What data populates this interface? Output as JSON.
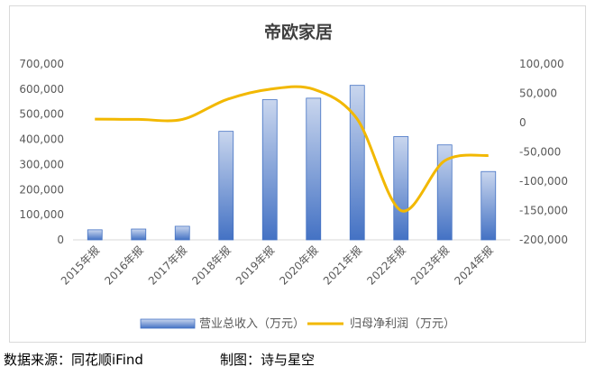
{
  "chart_data": {
    "type": "bar",
    "title": "帝欧家居",
    "categories": [
      "2015年报",
      "2016年报",
      "2017年报",
      "2018年报",
      "2019年报",
      "2020年报",
      "2021年报",
      "2022年报",
      "2023年报",
      "2024年报"
    ],
    "series": [
      {
        "name": "营业总收入（万元）",
        "type": "bar",
        "axis": "left",
        "values": [
          40000,
          43000,
          54000,
          432000,
          558000,
          564000,
          615000,
          411000,
          378000,
          272000
        ]
      },
      {
        "name": "归母净利润（万元）",
        "type": "line",
        "axis": "right",
        "values": [
          6000,
          5500,
          5500,
          39000,
          57000,
          57000,
          6000,
          -150000,
          -65000,
          -56000
        ]
      }
    ],
    "y_left": {
      "min": 0,
      "max": 700000,
      "step": 100000,
      "tick_labels": [
        "0",
        "100,000",
        "200,000",
        "300,000",
        "400,000",
        "500,000",
        "600,000",
        "700,000"
      ]
    },
    "y_right": {
      "min": -200000,
      "max": 100000,
      "step": 50000,
      "tick_labels": [
        "-200,000",
        "-150,000",
        "-100,000",
        "-50,000",
        "0",
        "50,000",
        "100,000"
      ]
    },
    "grid": false,
    "legend_position": "bottom",
    "colors": {
      "bar": "#4472c4",
      "bar_light": "#c9d6ee",
      "line": "#f2b800",
      "axis_text": "#595959",
      "title": "#3f3f3f"
    }
  },
  "footer": {
    "source": "数据来源：同花顺iFind",
    "maker": "制图：诗与星空"
  }
}
